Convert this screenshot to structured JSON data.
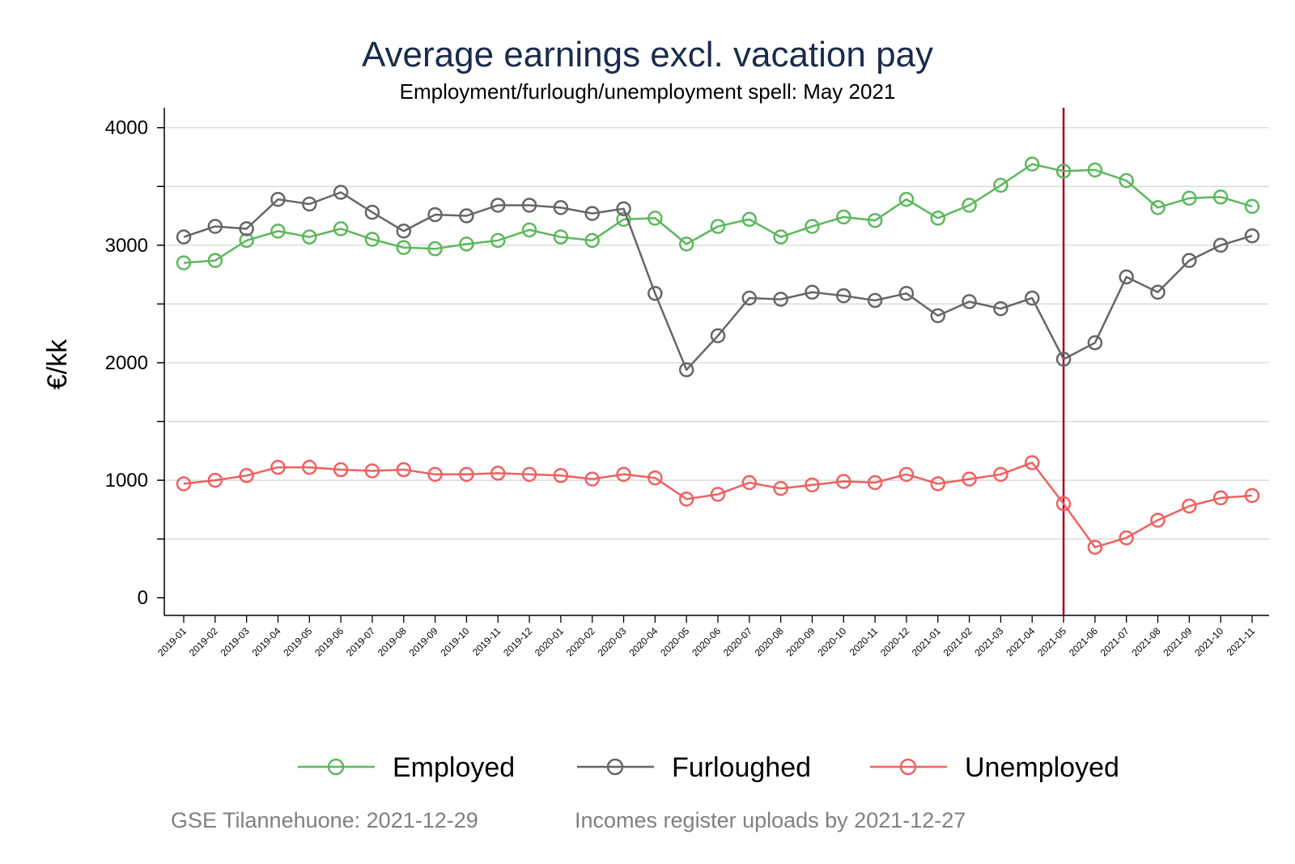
{
  "chart_data": {
    "type": "line",
    "title": "Average earnings excl. vacation pay",
    "subtitle": "Employment/furlough/unemployment spell: May 2021",
    "ylabel": "€/kk",
    "xlabel": "",
    "ylim": [
      -150,
      4170
    ],
    "yticks": [
      0,
      1000,
      2000,
      3000,
      4000
    ],
    "grid": true,
    "legend_position": "bottom",
    "reference_line": {
      "x": "2021-05",
      "color": "#a50021"
    },
    "categories": [
      "2019-01",
      "2019-02",
      "2019-03",
      "2019-04",
      "2019-05",
      "2019-06",
      "2019-07",
      "2019-08",
      "2019-09",
      "2019-10",
      "2019-11",
      "2019-12",
      "2020-01",
      "2020-02",
      "2020-03",
      "2020-04",
      "2020-05",
      "2020-06",
      "2020-07",
      "2020-08",
      "2020-09",
      "2020-10",
      "2020-11",
      "2020-12",
      "2021-01",
      "2021-02",
      "2021-03",
      "2021-04",
      "2021-05",
      "2021-06",
      "2021-07",
      "2021-08",
      "2021-09",
      "2021-10",
      "2021-11"
    ],
    "series": [
      {
        "name": "Employed",
        "color": "#5cb85c",
        "values": [
          2850,
          2870,
          3040,
          3120,
          3070,
          3140,
          3050,
          2980,
          2970,
          3010,
          3040,
          3130,
          3070,
          3040,
          3220,
          3230,
          3010,
          3160,
          3220,
          3070,
          3160,
          3240,
          3210,
          3390,
          3230,
          3340,
          3510,
          3690,
          3630,
          3640,
          3550,
          3320,
          3400,
          3410,
          3330
        ]
      },
      {
        "name": "Furloughed",
        "color": "#666666",
        "values": [
          3070,
          3160,
          3140,
          3390,
          3350,
          3450,
          3280,
          3120,
          3260,
          3250,
          3340,
          3340,
          3320,
          3270,
          3310,
          2590,
          1940,
          2230,
          2550,
          2540,
          2600,
          2570,
          2530,
          2590,
          2400,
          2520,
          2460,
          2550,
          2030,
          2170,
          2730,
          2600,
          2870,
          3000,
          3080
        ]
      },
      {
        "name": "Unemployed",
        "color": "#f06060",
        "values": [
          970,
          1000,
          1040,
          1110,
          1110,
          1090,
          1080,
          1090,
          1050,
          1050,
          1060,
          1050,
          1040,
          1010,
          1050,
          1020,
          840,
          880,
          980,
          930,
          960,
          990,
          980,
          1050,
          970,
          1010,
          1050,
          1150,
          800,
          430,
          510,
          660,
          780,
          850,
          870
        ]
      }
    ]
  },
  "footer": {
    "left": "GSE Tilannehuone: 2021-12-29",
    "right": "Incomes register uploads by 2021-12-27"
  }
}
